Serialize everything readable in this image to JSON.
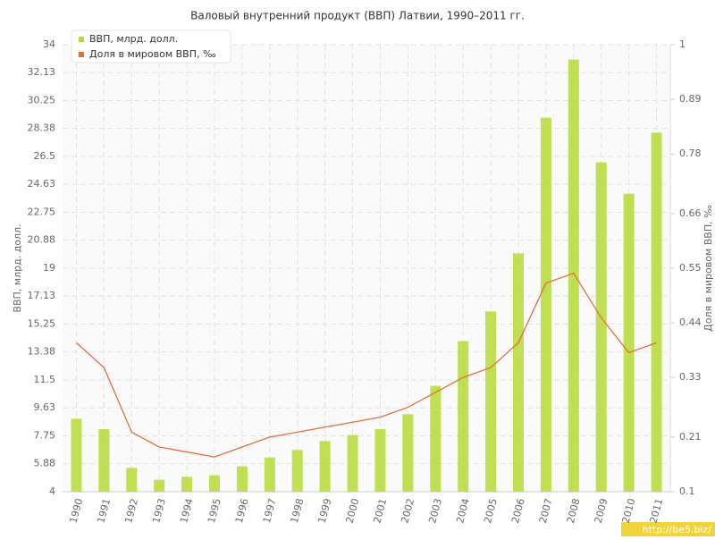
{
  "chart_data": {
    "type": "bar-line",
    "title": "Валовый внутренний продукт (ВВП) Латвии, 1990–2011 гг.",
    "y_label": "ВВП, млрд. долл.",
    "y2_label": "Доля в мировом ВВП, ‰",
    "watermark": "http://be5.biz/",
    "categories": [
      "1990",
      "1991",
      "1992",
      "1993",
      "1994",
      "1995",
      "1996",
      "1997",
      "1998",
      "1999",
      "2000",
      "2001",
      "2002",
      "2003",
      "2004",
      "2005",
      "2006",
      "2007",
      "2008",
      "2009",
      "2010",
      "2011"
    ],
    "series": [
      {
        "name": "ВВП, млрд. долл.",
        "type": "bar",
        "color": "#b5d935",
        "values": [
          8.9,
          8.2,
          5.6,
          4.8,
          5.0,
          5.1,
          5.7,
          6.3,
          6.8,
          7.4,
          7.8,
          8.2,
          9.2,
          11.1,
          14.1,
          16.1,
          20.0,
          29.1,
          33.0,
          26.1,
          24.0,
          28.1
        ]
      },
      {
        "name": "Доля в мировом ВВП, ‰",
        "type": "line",
        "axis": "y2",
        "color": "#e0703c",
        "values": [
          0.4,
          0.35,
          0.22,
          0.19,
          0.18,
          0.17,
          0.19,
          0.21,
          0.22,
          0.23,
          0.24,
          0.25,
          0.27,
          0.3,
          0.33,
          0.35,
          0.4,
          0.52,
          0.54,
          0.45,
          0.38,
          0.4
        ]
      }
    ],
    "ylim": [
      4,
      34
    ],
    "yticks": [
      4,
      5.88,
      7.75,
      9.63,
      11.5,
      13.38,
      15.25,
      17.13,
      19,
      20.88,
      22.75,
      24.63,
      26.5,
      28.38,
      30.25,
      32.13,
      34
    ],
    "y2lim": [
      0.1,
      1
    ],
    "y2ticks": [
      0.1,
      0.21,
      0.33,
      0.44,
      0.55,
      0.66,
      0.78,
      0.89,
      1
    ],
    "grid": true,
    "legend": "top-left"
  }
}
